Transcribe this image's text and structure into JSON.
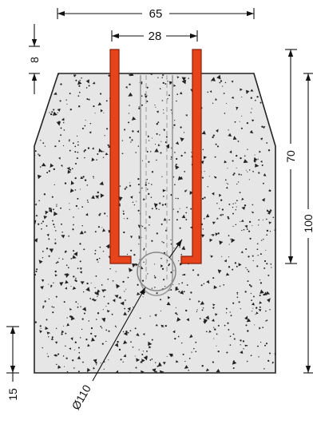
{
  "drawing": {
    "dimensions": {
      "overall_width": "65",
      "post_spacing": "28",
      "top_offset": "8",
      "embed_depth": "70",
      "total_height": "100",
      "base_thickness": "15",
      "hole_diameter": "Ø110"
    },
    "colors": {
      "concrete_fill": "#e6e6e6",
      "outline": "#222222",
      "steel_post": "#e8441c",
      "steel_post_edge": "#8a1e08",
      "dimension_line": "#111111",
      "aggregate": "#222222"
    }
  }
}
